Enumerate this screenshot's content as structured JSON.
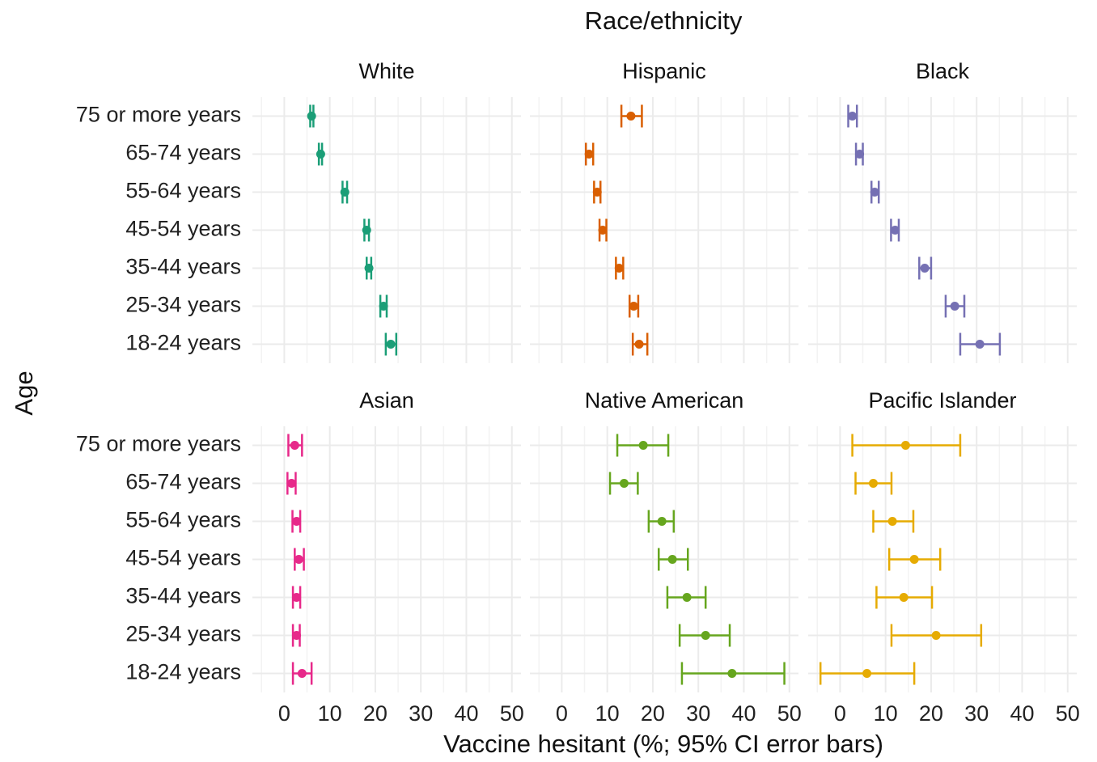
{
  "chart_data": {
    "type": "errorbar",
    "title": "Race/ethnicity",
    "x_label": "Vaccine hesitant (%; 95% CI error bars)",
    "y_label": "Age",
    "categories": [
      "75 or more years",
      "65-74 years",
      "55-64 years",
      "45-54 years",
      "35-44 years",
      "25-34 years",
      "18-24 years"
    ],
    "xlim": [
      -7,
      52
    ],
    "xticks": [
      0,
      10,
      20,
      30,
      40,
      50
    ],
    "minor_xticks": [
      -5,
      5,
      15,
      25,
      35,
      45
    ],
    "grid": true,
    "panels": [
      {
        "name": "White",
        "color": "#1b9e77",
        "values": [
          6.0,
          8.0,
          13.3,
          18.1,
          18.6,
          21.8,
          23.4
        ],
        "lower": [
          5.7,
          7.6,
          12.8,
          17.6,
          18.1,
          21.1,
          22.3
        ],
        "upper": [
          6.4,
          8.3,
          13.8,
          18.6,
          19.1,
          22.5,
          24.6
        ]
      },
      {
        "name": "Hispanic",
        "color": "#d95f02",
        "values": [
          15.2,
          6.0,
          7.8,
          9.0,
          12.6,
          15.8,
          17.0
        ],
        "lower": [
          13.1,
          5.3,
          7.1,
          8.3,
          11.9,
          14.9,
          15.6
        ],
        "upper": [
          17.6,
          6.9,
          8.5,
          9.8,
          13.5,
          16.8,
          18.8
        ]
      },
      {
        "name": "Black",
        "color": "#7570b3",
        "values": [
          2.7,
          4.3,
          7.6,
          12.1,
          18.6,
          25.2,
          30.7
        ],
        "lower": [
          1.8,
          3.5,
          6.9,
          11.2,
          17.4,
          23.2,
          26.4
        ],
        "upper": [
          3.7,
          5.0,
          8.5,
          12.9,
          20.0,
          27.3,
          35.1
        ]
      },
      {
        "name": "Asian",
        "color": "#e7298a",
        "values": [
          2.3,
          1.6,
          2.7,
          3.2,
          2.7,
          2.7,
          3.9
        ],
        "lower": [
          0.9,
          0.7,
          1.8,
          2.3,
          1.9,
          1.9,
          1.9
        ],
        "upper": [
          3.9,
          2.5,
          3.5,
          4.3,
          3.5,
          3.4,
          6.0
        ]
      },
      {
        "name": "Native American",
        "color": "#66a61e",
        "values": [
          17.9,
          13.7,
          22.0,
          24.3,
          27.5,
          31.6,
          37.4
        ],
        "lower": [
          12.2,
          10.6,
          19.1,
          21.3,
          23.2,
          25.9,
          26.4
        ],
        "upper": [
          23.4,
          16.7,
          24.6,
          27.7,
          31.6,
          36.9,
          48.9
        ]
      },
      {
        "name": "Pacific Islander",
        "color": "#e6ab02",
        "values": [
          14.4,
          7.3,
          11.5,
          16.3,
          14.0,
          21.1,
          5.9
        ],
        "lower": [
          2.7,
          3.4,
          7.3,
          10.8,
          8.0,
          11.3,
          -4.3
        ],
        "upper": [
          26.4,
          11.3,
          16.1,
          22.0,
          20.2,
          31.0,
          16.3
        ]
      }
    ]
  }
}
